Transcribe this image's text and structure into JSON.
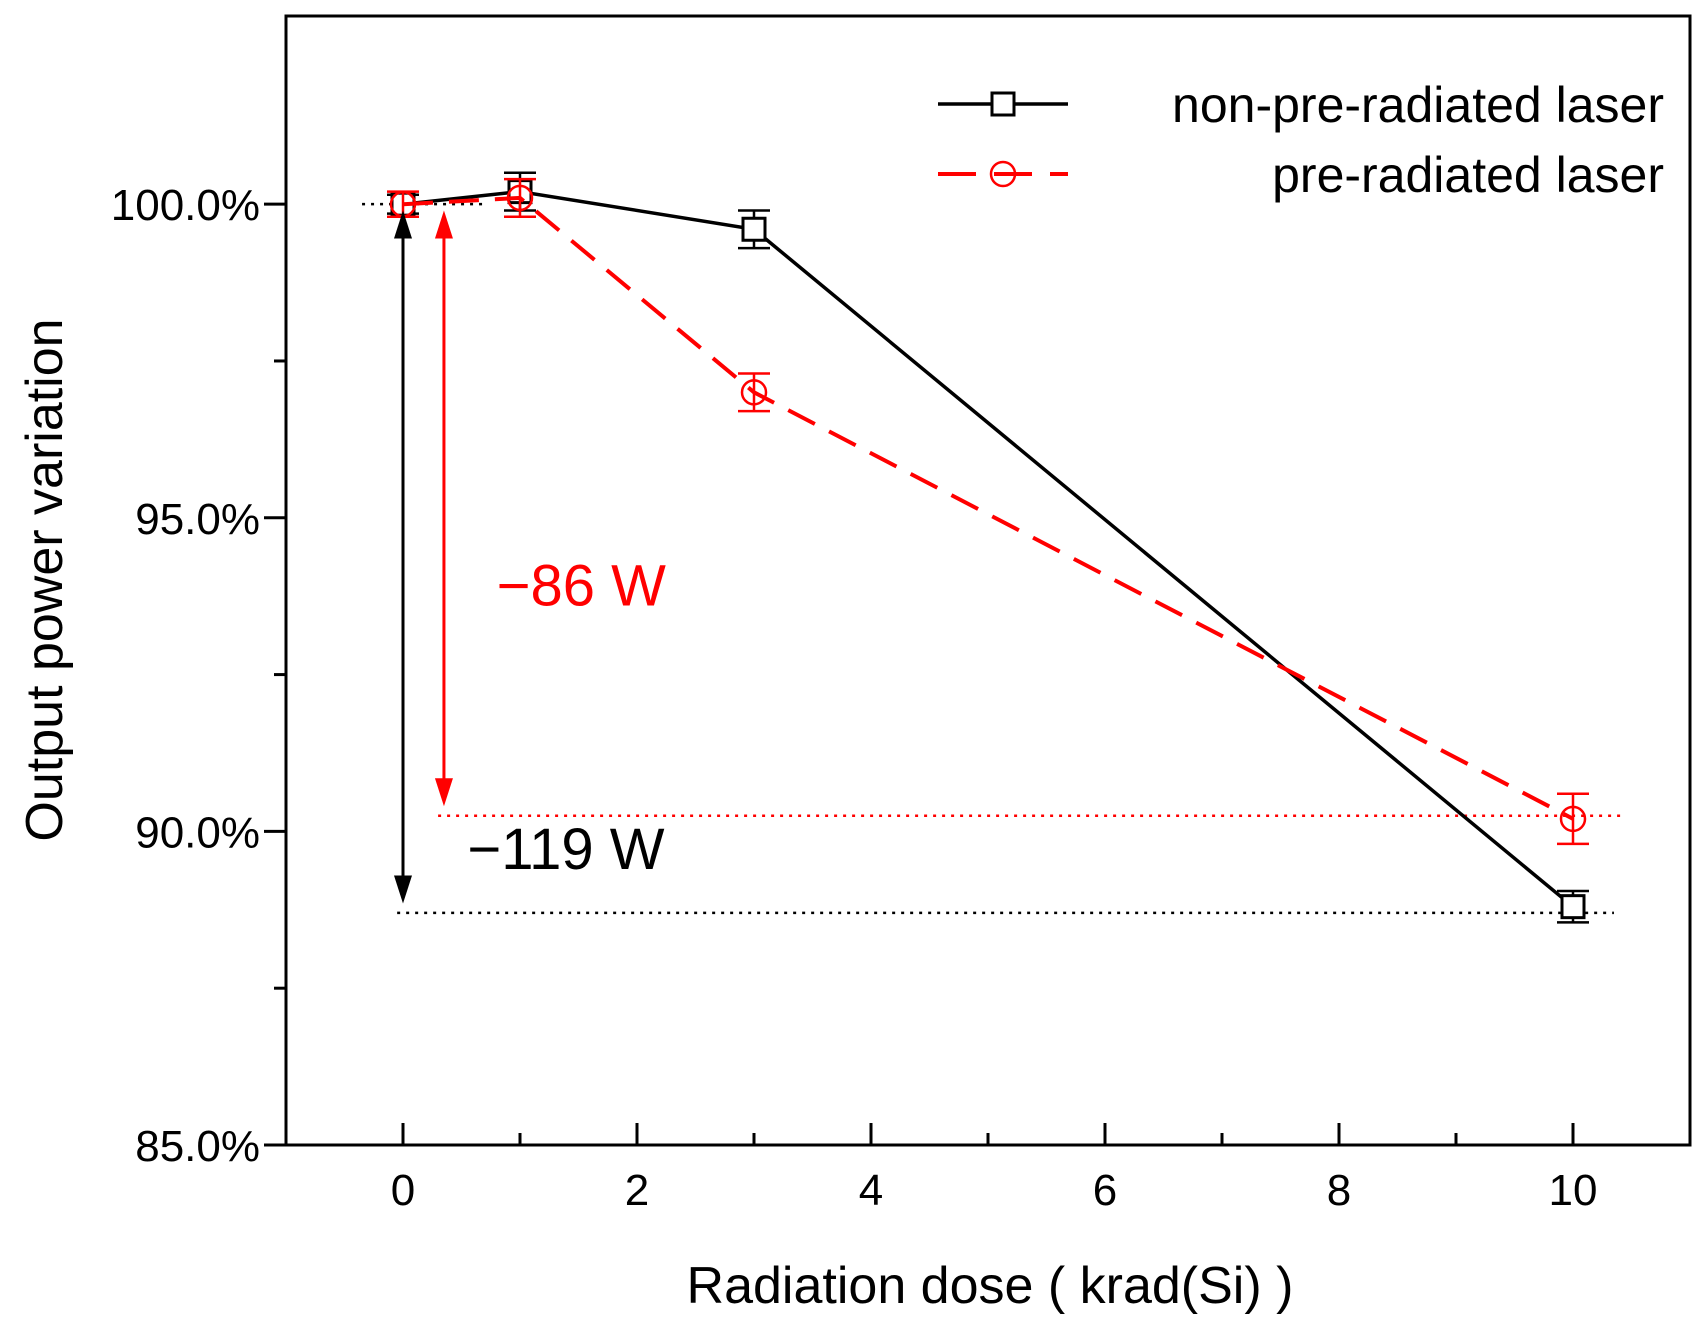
{
  "chart_data": {
    "type": "line",
    "xlabel": "Radiation dose ( krad(Si) )",
    "ylabel": "Output power variation",
    "xlim": [
      -1,
      11
    ],
    "ylim": [
      85.0,
      103.0
    ],
    "x_ticks": [
      0,
      2,
      4,
      6,
      8,
      10
    ],
    "x_tick_labels": [
      "0",
      "2",
      "4",
      "6",
      "8",
      "10"
    ],
    "y_ticks": [
      85.0,
      90.0,
      95.0,
      100.0
    ],
    "y_tick_labels": [
      "85.0%",
      "90.0%",
      "95.0%",
      "100.0%"
    ],
    "grid": false,
    "legend_position": "top-right",
    "series": [
      {
        "name": "non-pre-radiated laser",
        "color": "#000000",
        "line_style": "solid",
        "marker": "square",
        "x": [
          0,
          1,
          3,
          10
        ],
        "y": [
          100.0,
          100.2,
          99.6,
          88.8
        ],
        "error": [
          0.15,
          0.3,
          0.3,
          0.25
        ]
      },
      {
        "name": "pre-radiated laser",
        "color": "#ff0000",
        "line_style": "dashed",
        "marker": "circle",
        "x": [
          0,
          1,
          3,
          10
        ],
        "y": [
          100.0,
          100.1,
          97.0,
          90.2
        ],
        "error": [
          0.2,
          0.3,
          0.3,
          0.4
        ]
      }
    ],
    "reference_lines": [
      {
        "y": 100.0,
        "x_from": -0.35,
        "x_to": 0.7,
        "color": "#000000"
      },
      {
        "y": 90.25,
        "x_from": 0.3,
        "x_to": 10.45,
        "color": "#ff0000"
      },
      {
        "y": 88.7,
        "x_from": -0.05,
        "x_to": 10.35,
        "color": "#000000"
      }
    ],
    "arrows": [
      {
        "x": 0.0,
        "y_from": 99.9,
        "y_to": 88.85,
        "color": "#000000"
      },
      {
        "x": 0.35,
        "y_from": 99.9,
        "y_to": 90.4,
        "color": "#ff0000"
      }
    ],
    "annotations": [
      {
        "text": "−86 W",
        "x": 0.8,
        "y": 93.6,
        "color": "#ff0000"
      },
      {
        "text": "−119 W",
        "x": 0.55,
        "y": 89.4,
        "color": "#000000"
      }
    ]
  }
}
